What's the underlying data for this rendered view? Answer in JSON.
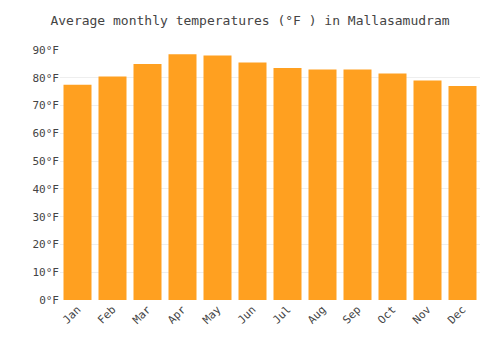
{
  "chart_data": {
    "type": "bar",
    "title": "Average monthly temperatures (°F ) in Mallasamudram",
    "categories": [
      "Jan",
      "Feb",
      "Mar",
      "Apr",
      "May",
      "Jun",
      "Jul",
      "Aug",
      "Sep",
      "Oct",
      "Nov",
      "Dec"
    ],
    "values": [
      77.5,
      80.5,
      85.0,
      88.5,
      88.0,
      85.5,
      83.5,
      83.0,
      83.0,
      81.5,
      79.0,
      77.0
    ],
    "color": "#FFA020",
    "ylim": [
      0,
      90
    ],
    "yticks": [
      {
        "value": 0,
        "label": "0°F"
      },
      {
        "value": 10,
        "label": "10°F"
      },
      {
        "value": 20,
        "label": "20°F"
      },
      {
        "value": 30,
        "label": "30°F"
      },
      {
        "value": 40,
        "label": "40°F"
      },
      {
        "value": 50,
        "label": "50°F"
      },
      {
        "value": 60,
        "label": "60°F"
      },
      {
        "value": 70,
        "label": "70°F"
      },
      {
        "value": 80,
        "label": "80°F"
      },
      {
        "value": 90,
        "label": "90°F"
      }
    ],
    "grid": true
  }
}
